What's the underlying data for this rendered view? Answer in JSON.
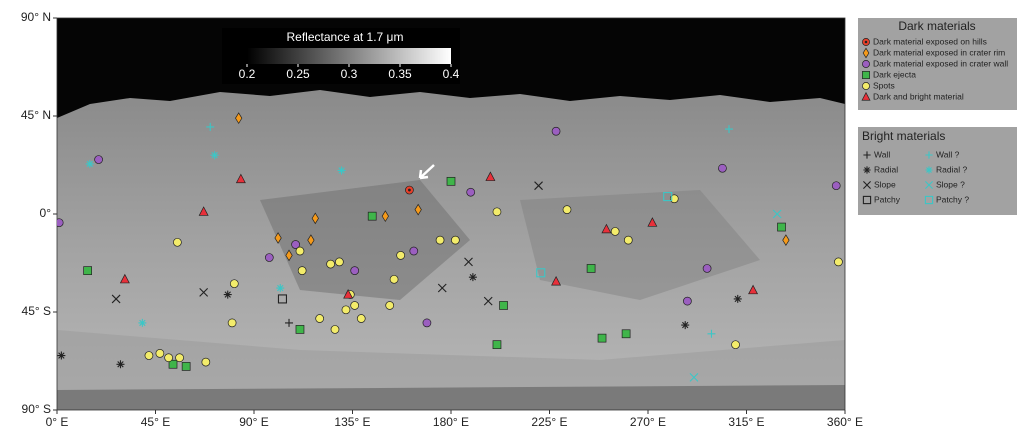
{
  "map": {
    "xlim": [
      0,
      360
    ],
    "ylim": [
      -90,
      90
    ],
    "xticks": [
      {
        "value": 0,
        "label": "0° E"
      },
      {
        "value": 45,
        "label": "45° E"
      },
      {
        "value": 90,
        "label": "90° E"
      },
      {
        "value": 135,
        "label": "135° E"
      },
      {
        "value": 180,
        "label": "180° E"
      },
      {
        "value": 225,
        "label": "225° E"
      },
      {
        "value": 270,
        "label": "270° E"
      },
      {
        "value": 315,
        "label": "315° E"
      },
      {
        "value": 360,
        "label": "360° E"
      }
    ],
    "yticks": [
      {
        "value": 90,
        "label": "90° N"
      },
      {
        "value": 45,
        "label": "45° N"
      },
      {
        "value": 0,
        "label": "0°"
      },
      {
        "value": -45,
        "label": "45° S"
      },
      {
        "value": -90,
        "label": "90° S"
      }
    ],
    "colorbar": {
      "title": "Reflectance at 1.7 μm",
      "range": [
        0.2,
        0.4
      ],
      "ticks": [
        0.2,
        0.25,
        0.3,
        0.35,
        0.4
      ]
    },
    "dark_legend": {
      "title": "Dark materials",
      "items": [
        {
          "label": "Dark material exposed on hills",
          "shape": "target",
          "color": "#e8402a",
          "points": [
            [
              161,
              11
            ]
          ]
        },
        {
          "label": "Dark material exposed in crater rim",
          "shape": "diamond",
          "color": "#f59a1b",
          "points": [
            [
              83,
              44
            ],
            [
              101,
              -11
            ],
            [
              116,
              -12
            ],
            [
              150,
              -1
            ],
            [
              165,
              2
            ],
            [
              333,
              -12
            ],
            [
              118,
              -2
            ],
            [
              106,
              -19
            ]
          ]
        },
        {
          "label": "Dark material exposed in crater wall",
          "shape": "circle",
          "color": "#9b5fc0",
          "points": [
            [
              1,
              -4
            ],
            [
              19,
              25
            ],
            [
              97,
              -20
            ],
            [
              109,
              -14
            ],
            [
              136,
              -26
            ],
            [
              189,
              10
            ],
            [
              228,
              38
            ],
            [
              288,
              -40
            ],
            [
              297,
              -25
            ],
            [
              304,
              21
            ],
            [
              356,
              13
            ],
            [
              169,
              -50
            ],
            [
              163,
              -17
            ]
          ]
        },
        {
          "label": "Dark ejecta",
          "shape": "square",
          "color": "#3fb54a",
          "points": [
            [
              14,
              -26
            ],
            [
              53,
              -69
            ],
            [
              59,
              -70
            ],
            [
              111,
              -53
            ],
            [
              144,
              -1
            ],
            [
              180,
              15
            ],
            [
              204,
              -42
            ],
            [
              201,
              -60
            ],
            [
              249,
              -57
            ],
            [
              260,
              -55
            ],
            [
              244,
              -25
            ],
            [
              331,
              -6
            ]
          ]
        },
        {
          "label": "Spots",
          "shape": "circle",
          "color": "#f3ec6b",
          "points": [
            [
              42,
              -65
            ],
            [
              47,
              -64
            ],
            [
              51,
              -66
            ],
            [
              56,
              -66
            ],
            [
              68,
              -68
            ],
            [
              55,
              -13
            ],
            [
              81,
              -32
            ],
            [
              80,
              -50
            ],
            [
              120,
              -48
            ],
            [
              127,
              -53
            ],
            [
              132,
              -44
            ],
            [
              136,
              -42
            ],
            [
              139,
              -48
            ],
            [
              134,
              -37
            ],
            [
              129,
              -22
            ],
            [
              125,
              -23
            ],
            [
              111,
              -17
            ],
            [
              154,
              -30
            ],
            [
              152,
              -42
            ],
            [
              175,
              -12
            ],
            [
              182,
              -12
            ],
            [
              201,
              1
            ],
            [
              233,
              2
            ],
            [
              255,
              -8
            ],
            [
              261,
              -12
            ],
            [
              282,
              7
            ],
            [
              310,
              -60
            ],
            [
              357,
              -22
            ],
            [
              112,
              -26
            ],
            [
              157,
              -19
            ]
          ]
        },
        {
          "label": "Dark and bright material",
          "shape": "triangle",
          "color": "#e8303a",
          "points": [
            [
              67,
              1
            ],
            [
              84,
              16
            ],
            [
              31,
              -30
            ],
            [
              133,
              -37
            ],
            [
              228,
              -31
            ],
            [
              272,
              -4
            ],
            [
              318,
              -35
            ],
            [
              251,
              -7
            ],
            [
              198,
              17
            ]
          ]
        }
      ]
    },
    "bright_legend": {
      "title": "Bright materials",
      "items": [
        {
          "label": "Wall",
          "shape": "plus",
          "color": "#222222",
          "points": [
            [
              106,
              -50
            ]
          ]
        },
        {
          "label": "Radial",
          "shape": "asterisk",
          "color": "#222222",
          "points": [
            [
              2,
              -65
            ],
            [
              29,
              -69
            ],
            [
              190,
              -29
            ],
            [
              287,
              -51
            ],
            [
              311,
              -39
            ],
            [
              78,
              -37
            ]
          ]
        },
        {
          "label": "Slope",
          "shape": "cross",
          "color": "#222222",
          "points": [
            [
              27,
              -39
            ],
            [
              176,
              -34
            ],
            [
              188,
              -22
            ],
            [
              197,
              -40
            ],
            [
              220,
              13
            ],
            [
              67,
              -36
            ]
          ]
        },
        {
          "label": "Patchy",
          "shape": "open-square",
          "color": "#222222",
          "points": [
            [
              103,
              -39
            ]
          ]
        },
        {
          "label": "Wall ?",
          "shape": "plus",
          "color": "#3cc6c6",
          "points": [
            [
              70,
              40
            ],
            [
              307,
              39
            ],
            [
              299,
              -55
            ]
          ]
        },
        {
          "label": "Radial ?",
          "shape": "asterisk",
          "color": "#3cc6c6",
          "points": [
            [
              39,
              -50
            ],
            [
              130,
              20
            ],
            [
              102,
              -34
            ],
            [
              72,
              27
            ],
            [
              15,
              23
            ]
          ]
        },
        {
          "label": "Slope ?",
          "shape": "cross",
          "color": "#3cc6c6",
          "points": [
            [
              291,
              -75
            ],
            [
              329,
              0
            ]
          ]
        },
        {
          "label": "Patchy ?",
          "shape": "open-square",
          "color": "#3cc6c6",
          "points": [
            [
              279,
              8
            ],
            [
              221,
              -27
            ]
          ]
        }
      ]
    }
  }
}
